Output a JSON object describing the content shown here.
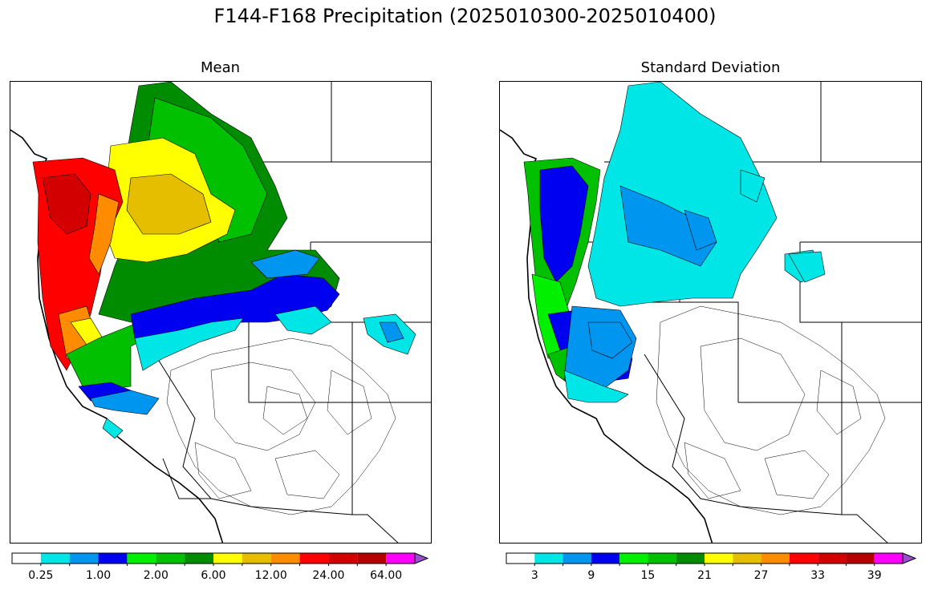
{
  "figure": {
    "title": "F144-F168 Precipitation (2025010300-2025010400)"
  },
  "panels": [
    {
      "title": "Mean",
      "colorbar": {
        "colors": [
          "#ffffff",
          "#00e6e6",
          "#0096f0",
          "#0000f0",
          "#00f000",
          "#00c000",
          "#008c00",
          "#ffff00",
          "#e6be00",
          "#ff8c00",
          "#ff0000",
          "#d20000",
          "#b40000",
          "#ff00ff",
          "#9650c8"
        ],
        "tick_labels": [
          "0.25",
          "1.00",
          "2.00",
          "6.00",
          "12.00",
          "24.00",
          "64.00"
        ],
        "extend": "max"
      }
    },
    {
      "title": "Standard Deviation",
      "colorbar": {
        "colors": [
          "#ffffff",
          "#00e6e6",
          "#0096f0",
          "#0000f0",
          "#00f000",
          "#00c000",
          "#008c00",
          "#ffff00",
          "#e6be00",
          "#ff8c00",
          "#ff0000",
          "#d20000",
          "#b40000",
          "#ff00ff",
          "#9650c8"
        ],
        "tick_labels": [
          "3",
          "9",
          "15",
          "21",
          "27",
          "33",
          "39"
        ],
        "extend": "max"
      }
    }
  ]
}
